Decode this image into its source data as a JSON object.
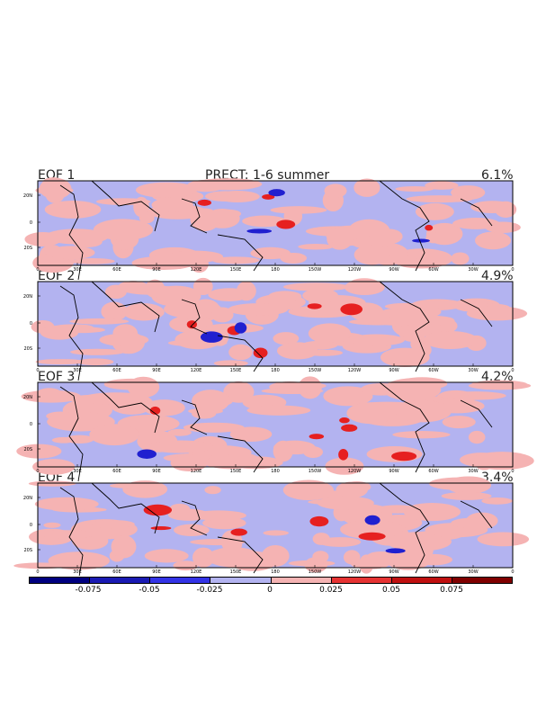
{
  "title": "PRECT: 1-6 summer",
  "panels": [
    {
      "label": "EOF 1",
      "variance": "6.1%"
    },
    {
      "label": "EOF 2",
      "variance": "4.9%"
    },
    {
      "label": "EOF 3",
      "variance": "4.2%"
    },
    {
      "label": "EOF 4",
      "variance": "3.4%"
    }
  ],
  "lat_ticks": [
    "20N",
    "0",
    "20S"
  ],
  "lon_ticks": [
    "0",
    "30E",
    "60E",
    "90E",
    "120E",
    "150E",
    "180",
    "150W",
    "120W",
    "90W",
    "60W",
    "30W",
    "0"
  ],
  "colorbar": {
    "colors": [
      "#000080",
      "#1a1ab3",
      "#3333e6",
      "#b3b3f0",
      "#f5b3b3",
      "#e63333",
      "#c01010",
      "#800000"
    ],
    "labels": [
      "-0.075",
      "-0.05",
      "-0.025",
      "0",
      "0.025",
      "0.05",
      "0.075"
    ]
  },
  "fill_colors": {
    "negative_weak": "#b3b3f0",
    "positive_weak": "#f5b3b3",
    "negative_strong": "#2020d0",
    "positive_strong": "#e62020"
  }
}
